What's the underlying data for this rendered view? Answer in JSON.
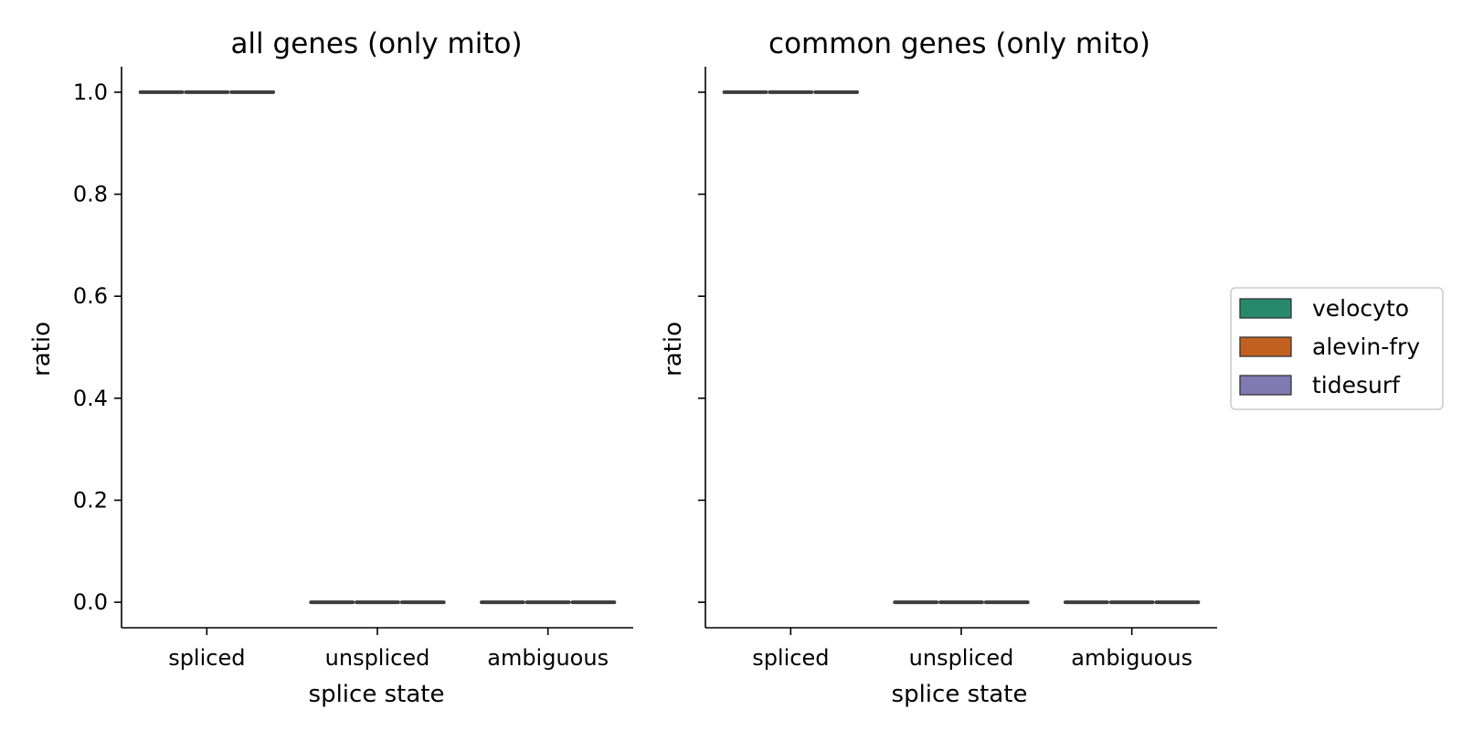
{
  "legend": {
    "entries": [
      {
        "label": "velocyto",
        "color": "#26896a"
      },
      {
        "label": "alevin-fry",
        "color": "#c2611f"
      },
      {
        "label": "tidesurf",
        "color": "#7f7ab2"
      }
    ]
  },
  "chart_data": [
    {
      "type": "box",
      "title": "all genes (only mito)",
      "xlabel": "splice state",
      "ylabel": "ratio",
      "categories": [
        "spliced",
        "unspliced",
        "ambiguous"
      ],
      "yticks": [
        "0.0",
        "0.2",
        "0.4",
        "0.6",
        "0.8",
        "1.0"
      ],
      "ylim": [
        -0.05,
        1.05
      ],
      "series": [
        {
          "name": "velocyto",
          "values": [
            1.0,
            0.0,
            0.0
          ]
        },
        {
          "name": "alevin-fry",
          "values": [
            1.0,
            0.0,
            0.0
          ]
        },
        {
          "name": "tidesurf",
          "values": [
            1.0,
            0.0,
            0.0
          ]
        }
      ]
    },
    {
      "type": "box",
      "title": "common genes (only mito)",
      "xlabel": "splice state",
      "ylabel": "ratio",
      "categories": [
        "spliced",
        "unspliced",
        "ambiguous"
      ],
      "yticks": [
        "0.0",
        "0.2",
        "0.4",
        "0.6",
        "0.8",
        "1.0"
      ],
      "ylim": [
        -0.05,
        1.05
      ],
      "series": [
        {
          "name": "velocyto",
          "values": [
            1.0,
            0.0,
            0.0
          ]
        },
        {
          "name": "alevin-fry",
          "values": [
            1.0,
            0.0,
            0.0
          ]
        },
        {
          "name": "tidesurf",
          "values": [
            1.0,
            0.0,
            0.0
          ]
        }
      ]
    }
  ]
}
